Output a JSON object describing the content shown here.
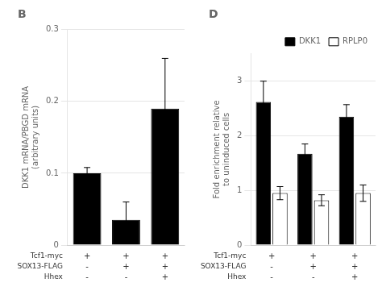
{
  "chart_data": [
    {
      "type": "bar",
      "title": "B",
      "y_label": "DKK1 mRNA/PBGD mRNA\n(arbitrary units)",
      "values": [
        0.1,
        0.035,
        0.19
      ],
      "errors": [
        0.008,
        0.025,
        0.07
      ],
      "color": "#000000",
      "ylim": [
        0,
        0.3
      ],
      "yticks": [
        0,
        0.1,
        0.2,
        0.3
      ],
      "grid": true,
      "row_labels": [
        "Tcf1-myc",
        "SOX13-FLAG",
        "Hhex"
      ],
      "row_values": [
        [
          "+",
          "+",
          "+"
        ],
        [
          "-",
          "+",
          "+"
        ],
        [
          "-",
          "-",
          "+"
        ]
      ]
    },
    {
      "type": "bar",
      "title": "D",
      "y_label": "Fold enrichment relative\nto uninduced cells",
      "series": [
        {
          "name": "DKK1",
          "color": "#000000",
          "values": [
            2.62,
            1.67,
            2.35
          ],
          "errors": [
            0.38,
            0.18,
            0.22
          ]
        },
        {
          "name": "RPLP0",
          "color": "#ffffff",
          "values": [
            0.95,
            0.82,
            0.95
          ],
          "errors": [
            0.12,
            0.1,
            0.15
          ]
        }
      ],
      "ylim": [
        0,
        3.5
      ],
      "yticks": [
        0,
        1,
        2,
        3
      ],
      "grid": true,
      "legend": "upper right",
      "row_labels": [
        "Tcf1-myc",
        "SOX13-FLAG",
        "Hhex"
      ],
      "row_values": [
        [
          "+",
          "+",
          "+"
        ],
        [
          "-",
          "+",
          "+"
        ],
        [
          "-",
          "-",
          "+"
        ]
      ]
    }
  ]
}
